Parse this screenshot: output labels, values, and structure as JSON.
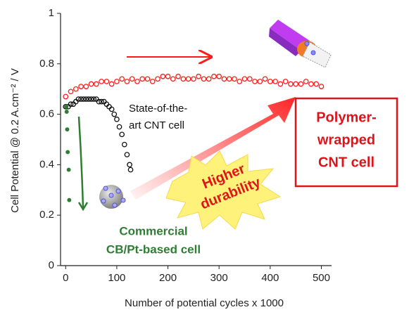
{
  "chart_data": {
    "type": "scatter",
    "x_label": "Number of potential cycles x 1000",
    "y_label": "Cell Potential @ 0.2 A.cm⁻² / V",
    "xlim": [
      -10,
      520
    ],
    "xticks": [
      0,
      100,
      200,
      300,
      400,
      500
    ],
    "ylim": [
      0,
      1
    ],
    "yticks": [
      0,
      0.2,
      0.4,
      0.6,
      0.8,
      1
    ],
    "series": [
      {
        "color": "#ff1a1a",
        "marker": "circle-open",
        "x": [
          0,
          10,
          20,
          30,
          40,
          50,
          60,
          70,
          80,
          90,
          100,
          110,
          120,
          130,
          140,
          150,
          160,
          170,
          180,
          190,
          200,
          210,
          220,
          230,
          240,
          250,
          260,
          270,
          280,
          290,
          300,
          310,
          320,
          330,
          340,
          350,
          360,
          370,
          380,
          390,
          400,
          410,
          420,
          430,
          440,
          450,
          460,
          470,
          480,
          490,
          500
        ],
        "values": [
          0.67,
          0.69,
          0.7,
          0.71,
          0.71,
          0.72,
          0.72,
          0.73,
          0.73,
          0.72,
          0.73,
          0.74,
          0.73,
          0.74,
          0.73,
          0.74,
          0.74,
          0.73,
          0.74,
          0.75,
          0.75,
          0.74,
          0.75,
          0.74,
          0.74,
          0.74,
          0.75,
          0.74,
          0.74,
          0.75,
          0.75,
          0.74,
          0.74,
          0.74,
          0.73,
          0.74,
          0.74,
          0.73,
          0.73,
          0.74,
          0.73,
          0.73,
          0.72,
          0.73,
          0.72,
          0.72,
          0.72,
          0.73,
          0.72,
          0.72,
          0.71
        ]
      },
      {
        "color": "#111111",
        "marker": "circle-open",
        "x": [
          0,
          5,
          10,
          15,
          20,
          25,
          30,
          35,
          40,
          45,
          50,
          55,
          60,
          65,
          70,
          75,
          80,
          85,
          90,
          95,
          100,
          105,
          110,
          115,
          120,
          125,
          127
        ],
        "values": [
          0.63,
          0.63,
          0.64,
          0.64,
          0.65,
          0.66,
          0.66,
          0.66,
          0.66,
          0.66,
          0.66,
          0.66,
          0.66,
          0.65,
          0.65,
          0.65,
          0.64,
          0.63,
          0.62,
          0.6,
          0.58,
          0.55,
          0.52,
          0.48,
          0.44,
          0.4,
          0.38
        ]
      },
      {
        "color": "#2e7d32",
        "marker": "circle",
        "x": [
          1,
          2,
          3,
          4,
          6,
          7
        ],
        "values": [
          0.63,
          0.61,
          0.54,
          0.45,
          0.38,
          0.26
        ]
      }
    ],
    "annotations": [
      {
        "lines": [
          "State-of-the-",
          "art CNT cell"
        ],
        "color": "#111111"
      },
      {
        "lines": [
          "Polymer-",
          "wrapped",
          "CNT cell"
        ],
        "color": "#e0131b"
      },
      {
        "lines": [
          "Higher",
          "durability"
        ],
        "color": "#e0131b"
      },
      {
        "lines": [
          "Commercial",
          "CB/Pt-based cell"
        ],
        "color": "#2e7d32"
      }
    ]
  }
}
